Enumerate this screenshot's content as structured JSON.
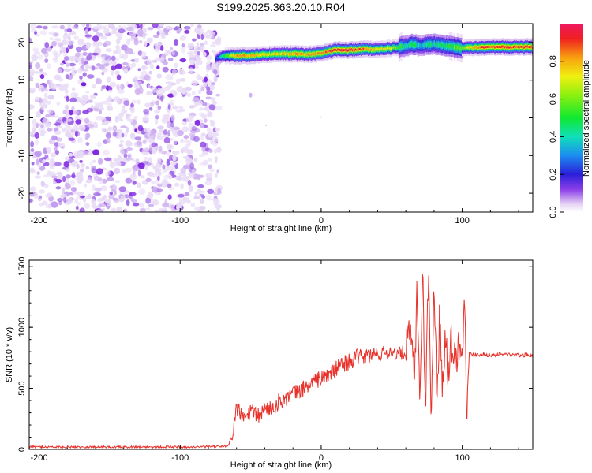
{
  "chart_data": [
    {
      "type": "heatmap",
      "title": "S199.2025.363.20.10.R04",
      "xlabel": "Height of straight line (km)",
      "ylabel": "Frequency (Hz)",
      "xlim": [
        -207,
        150
      ],
      "ylim": [
        -25,
        25
      ],
      "xticks": [
        -200,
        -100,
        0,
        100
      ],
      "yticks": [
        -20,
        -10,
        0,
        10,
        20
      ],
      "noise_region": {
        "x_range": [
          -207,
          -72
        ],
        "y_range": [
          -25,
          25
        ]
      },
      "ridge": {
        "x": [
          -75,
          -70,
          -60,
          -50,
          -40,
          -30,
          -20,
          -10,
          0,
          10,
          20,
          30,
          40,
          50,
          60,
          65,
          70,
          75,
          80,
          90,
          100,
          110,
          120,
          130,
          140,
          150
        ],
        "freq": [
          15.5,
          16.5,
          16.5,
          16.5,
          16.8,
          17.0,
          17.0,
          16.8,
          17.2,
          18.0,
          18.0,
          18.2,
          18.2,
          18.5,
          19.0,
          19.5,
          19.0,
          19.5,
          19.5,
          19.0,
          18.5,
          18.7,
          18.8,
          18.8,
          18.8,
          18.8
        ],
        "amplitude": [
          0.2,
          0.4,
          0.85,
          0.8,
          0.7,
          0.75,
          0.8,
          0.8,
          0.85,
          0.95,
          0.95,
          0.85,
          0.75,
          0.7,
          0.4,
          0.5,
          0.35,
          0.45,
          0.4,
          0.5,
          0.6,
          0.85,
          0.9,
          0.9,
          0.9,
          0.9
        ]
      },
      "colorbar": {
        "label": "Normalized spectral amplitude",
        "range": [
          0.0,
          1.0
        ],
        "ticks": [
          0.0,
          0.2,
          0.4,
          0.6,
          0.8
        ]
      }
    },
    {
      "type": "line",
      "xlabel": "Height of straight line (km)",
      "ylabel": "SNR (10 * v/v)",
      "xlim": [
        -207,
        150
      ],
      "ylim": [
        0,
        1550
      ],
      "xticks": [
        -200,
        -100,
        0,
        100
      ],
      "yticks": [
        0,
        500,
        1000,
        1500
      ],
      "series": [
        {
          "name": "SNR",
          "color": "#e8312a",
          "x": [
            -207,
            -180,
            -150,
            -120,
            -90,
            -66,
            -63,
            -60,
            -55,
            -50,
            -45,
            -40,
            -35,
            -30,
            -25,
            -20,
            -15,
            -10,
            -5,
            0,
            5,
            10,
            15,
            20,
            25,
            30,
            35,
            40,
            45,
            50,
            55,
            60,
            63,
            66,
            68,
            70,
            72,
            74,
            76,
            78,
            80,
            82,
            84,
            86,
            88,
            90,
            92,
            95,
            98,
            100,
            102,
            103,
            105,
            110,
            120,
            130,
            140,
            150
          ],
          "y": [
            20,
            20,
            20,
            20,
            20,
            25,
            120,
            340,
            250,
            310,
            270,
            330,
            340,
            390,
            420,
            450,
            480,
            520,
            560,
            580,
            610,
            650,
            700,
            720,
            750,
            760,
            770,
            780,
            790,
            800,
            780,
            800,
            1000,
            560,
            1300,
            420,
            1450,
            300,
            1500,
            200,
            1400,
            450,
            1100,
            500,
            980,
            640,
            900,
            720,
            880,
            760,
            1350,
            320,
            780,
            780,
            775,
            780,
            770,
            775
          ]
        }
      ]
    }
  ]
}
